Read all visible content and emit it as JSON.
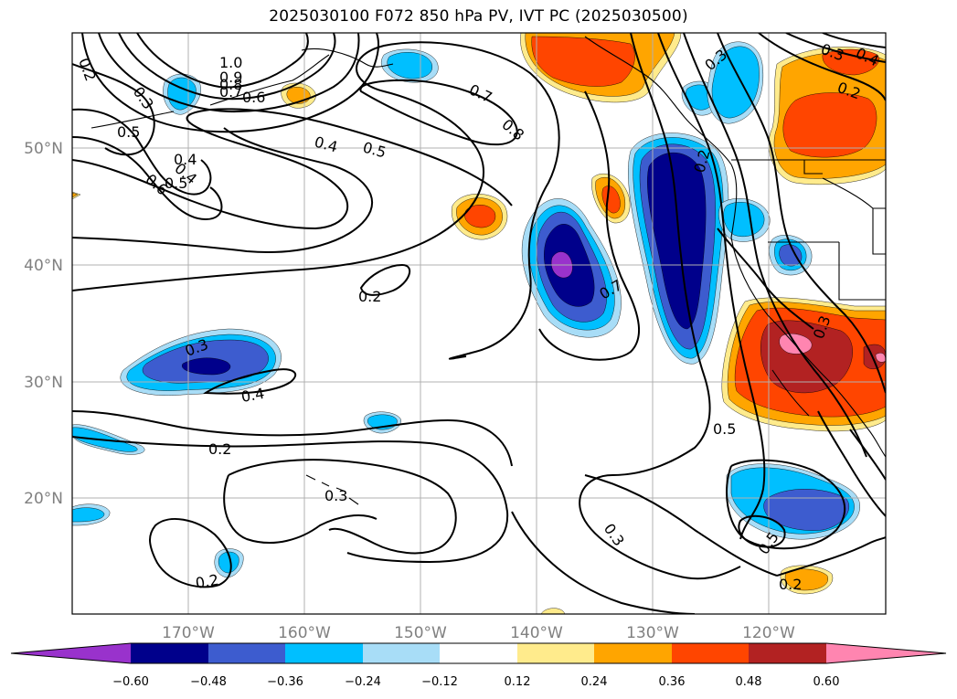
{
  "title": "2025030100 F072 850 hPa PV, IVT PC (2025030500)",
  "colors": {
    "c_neg_060": "#9932cc",
    "c_neg_048": "#00008b",
    "c_neg_036": "#3d5ccf",
    "c_neg_024": "#00bfff",
    "c_neg_012": "#a8ddf7",
    "c_pos_012": "#ffeb8c",
    "c_pos_024": "#ffa500",
    "c_pos_036": "#ff4500",
    "c_pos_048": "#b22222",
    "c_pos_060": "#ff85b0"
  },
  "map": {
    "lon_labels": [
      "170°W",
      "160°W",
      "150°W",
      "140°W",
      "130°W",
      "120°W"
    ],
    "lat_labels": [
      "50°N",
      "40°N",
      "30°N",
      "20°N"
    ],
    "contour_labels": [
      "1.0",
      "0.9",
      "0.8",
      "0.7",
      "0.6",
      "0.5",
      "0.4",
      "0.3",
      "0.2",
      "0.7",
      "0.8",
      "0.4",
      "0.5",
      "0.5",
      "0.6",
      "0.4",
      "0.3",
      "0.2",
      "0.3",
      "0.4",
      "0.2",
      "0.7",
      "0.3",
      "0.3",
      "0.2",
      "0.3",
      "0.2",
      "0.5",
      "0.5",
      "0.2",
      "0.3",
      "0.4",
      "0.2"
    ]
  },
  "colorbar": {
    "tick_labels": [
      "−0.60",
      "−0.48",
      "−0.36",
      "−0.24",
      "−0.12",
      "0.12",
      "0.24",
      "0.36",
      "0.48",
      "0.60"
    ]
  }
}
